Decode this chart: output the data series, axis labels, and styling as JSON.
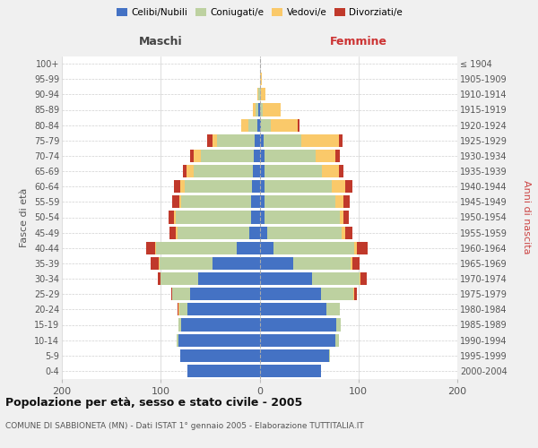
{
  "age_groups": [
    "0-4",
    "5-9",
    "10-14",
    "15-19",
    "20-24",
    "25-29",
    "30-34",
    "35-39",
    "40-44",
    "45-49",
    "50-54",
    "55-59",
    "60-64",
    "65-69",
    "70-74",
    "75-79",
    "80-84",
    "85-89",
    "90-94",
    "95-99",
    "100+"
  ],
  "birth_years": [
    "2000-2004",
    "1995-1999",
    "1990-1994",
    "1985-1989",
    "1980-1984",
    "1975-1979",
    "1970-1974",
    "1965-1969",
    "1960-1964",
    "1955-1959",
    "1950-1954",
    "1945-1949",
    "1940-1944",
    "1935-1939",
    "1930-1934",
    "1925-1929",
    "1920-1924",
    "1915-1919",
    "1910-1914",
    "1905-1909",
    "≤ 1904"
  ],
  "maschi_celibi": [
    73,
    80,
    82,
    79,
    73,
    70,
    62,
    48,
    23,
    10,
    9,
    9,
    8,
    7,
    6,
    5,
    2,
    1,
    0,
    0,
    0
  ],
  "maschi_coniugati": [
    0,
    0,
    2,
    3,
    8,
    18,
    38,
    53,
    82,
    73,
    76,
    70,
    68,
    60,
    53,
    38,
    9,
    3,
    1,
    0,
    0
  ],
  "maschi_vedovi": [
    0,
    0,
    0,
    0,
    1,
    0,
    0,
    1,
    1,
    2,
    2,
    2,
    4,
    7,
    8,
    5,
    8,
    3,
    1,
    0,
    0
  ],
  "maschi_divorziati": [
    0,
    0,
    0,
    0,
    1,
    1,
    3,
    8,
    9,
    6,
    5,
    7,
    7,
    4,
    3,
    5,
    0,
    0,
    0,
    0,
    0
  ],
  "femmine_nubili": [
    62,
    70,
    77,
    78,
    68,
    62,
    53,
    34,
    14,
    8,
    5,
    5,
    5,
    5,
    5,
    4,
    1,
    0,
    0,
    0,
    0
  ],
  "femmine_coniugate": [
    0,
    1,
    3,
    4,
    13,
    33,
    48,
    58,
    82,
    75,
    76,
    72,
    68,
    58,
    52,
    38,
    10,
    3,
    1,
    0,
    0
  ],
  "femmine_vedove": [
    0,
    0,
    0,
    0,
    0,
    1,
    1,
    2,
    2,
    4,
    4,
    8,
    14,
    17,
    20,
    38,
    28,
    18,
    5,
    2,
    0
  ],
  "femmine_divorziate": [
    0,
    0,
    0,
    0,
    0,
    2,
    6,
    7,
    11,
    7,
    5,
    6,
    7,
    5,
    4,
    4,
    1,
    0,
    0,
    0,
    0
  ],
  "colors": {
    "celibi": "#4472C4",
    "coniugati": "#BDD1A0",
    "vedovi": "#FAC96A",
    "divorziati": "#C0392B"
  },
  "xlim": 200,
  "title": "Popolazione per età, sesso e stato civile - 2005",
  "subtitle": "COMUNE DI SABBIONETA (MN) - Dati ISTAT 1° gennaio 2005 - Elaborazione TUTTITALIA.IT",
  "ylabel_left": "Fasce di età",
  "ylabel_right": "Anni di nascita",
  "xlabel_left": "Maschi",
  "xlabel_right": "Femmine",
  "bg_color": "#f0f0f0",
  "plot_bg": "#ffffff"
}
